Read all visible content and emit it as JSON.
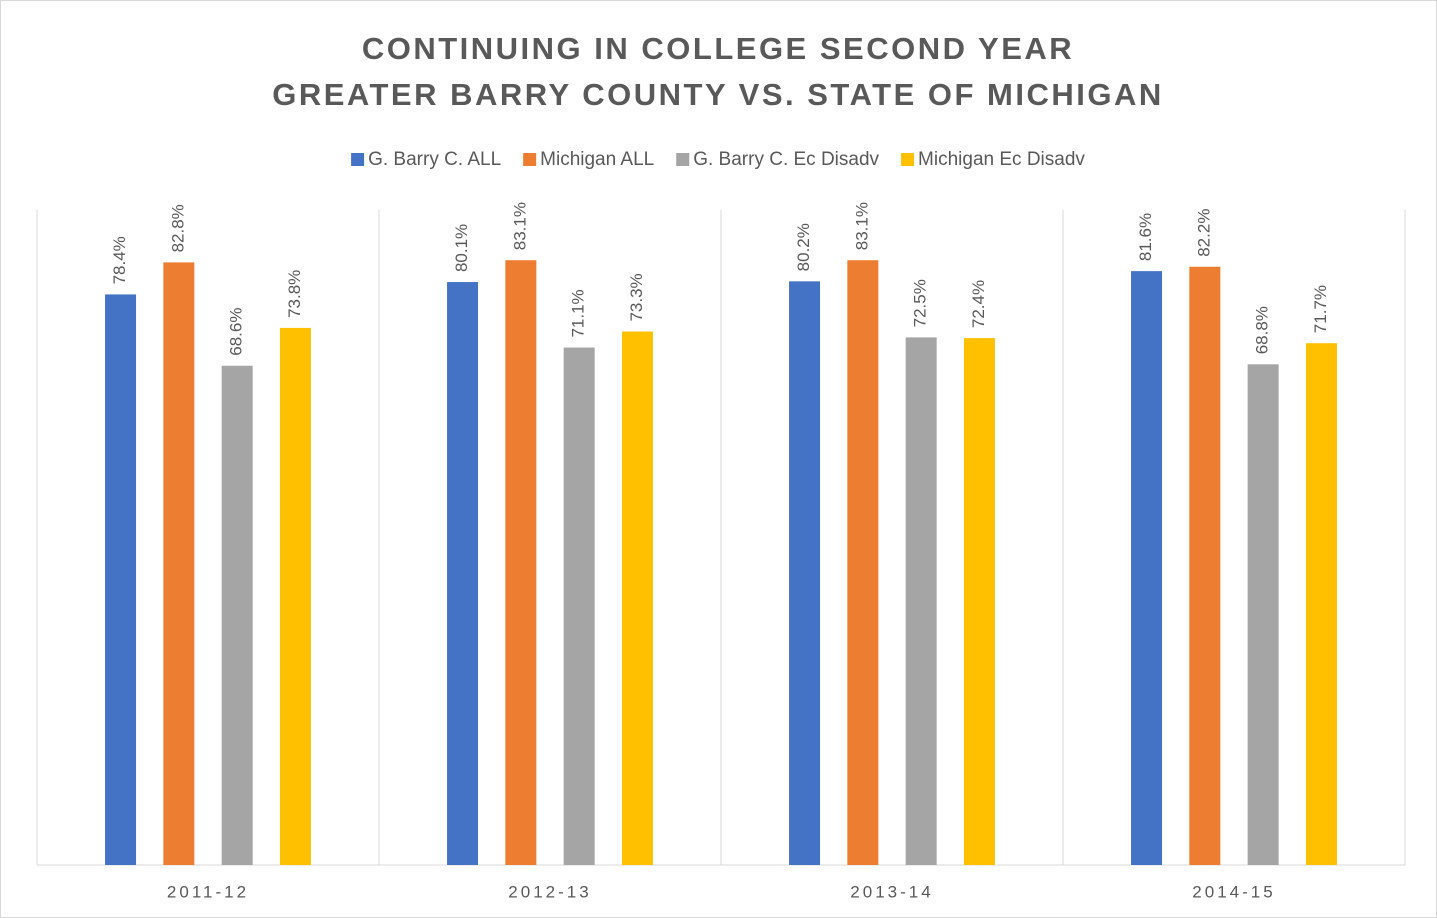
{
  "chart_data": {
    "type": "bar",
    "title": "CONTINUING IN COLLEGE SECOND YEAR",
    "subtitle": "GREATER BARRY COUNTY VS. STATE OF MICHIGAN",
    "categories": [
      "2011-12",
      "2012-13",
      "2013-14",
      "2014-15"
    ],
    "ylim": [
      0,
      90
    ],
    "legend": "top",
    "series": [
      {
        "name": "G. Barry C. ALL",
        "color": "#4472c4",
        "values": [
          78.4,
          80.1,
          80.2,
          81.6
        ],
        "value_labels": [
          "78.4%",
          "80.1%",
          "80.2%",
          "81.6%"
        ]
      },
      {
        "name": "Michigan ALL",
        "color": "#ed7d31",
        "values": [
          82.8,
          83.1,
          83.1,
          82.2
        ],
        "value_labels": [
          "82.8%",
          "83.1%",
          "83.1%",
          "82.2%"
        ]
      },
      {
        "name": "G. Barry C. Ec Disadv",
        "color": "#a5a5a5",
        "values": [
          68.6,
          71.1,
          72.5,
          68.8
        ],
        "value_labels": [
          "68.6%",
          "71.1%",
          "72.5%",
          "68.8%"
        ]
      },
      {
        "name": "Michigan Ec Disadv",
        "color": "#ffc000",
        "values": [
          73.8,
          73.3,
          72.4,
          71.7
        ],
        "value_labels": [
          "73.8%",
          "73.3%",
          "72.4%",
          "71.7%"
        ]
      }
    ]
  }
}
